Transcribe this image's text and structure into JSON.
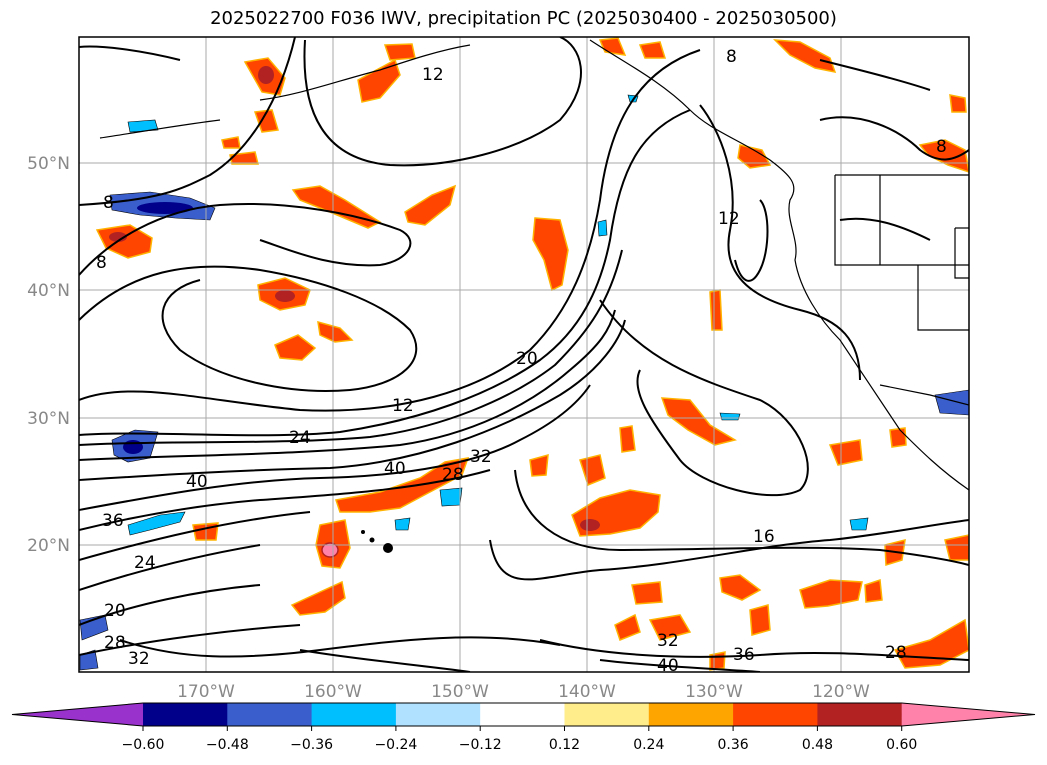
{
  "title": "2025022700 F036 IWV, precipitation PC (2025030400 - 2025030500)",
  "map": {
    "lat_ticks": [
      "50°N",
      "40°N",
      "30°N",
      "20°N"
    ],
    "lon_ticks": [
      "170°W",
      "160°W",
      "150°W",
      "140°W",
      "130°W",
      "120°W"
    ],
    "contour_labels": [
      "12",
      "8",
      "8",
      "20",
      "12",
      "24",
      "40",
      "40",
      "28",
      "32",
      "36",
      "24",
      "20",
      "28",
      "32",
      "16",
      "32",
      "40",
      "36",
      "28",
      "12",
      "8",
      "8"
    ]
  },
  "colorbar": {
    "ticks": [
      "−0.60",
      "−0.48",
      "−0.36",
      "−0.24",
      "−0.12",
      "0.12",
      "0.24",
      "0.36",
      "0.48",
      "0.60"
    ],
    "colors": [
      "#9932CC",
      "#00008B",
      "#3A5FCD",
      "#00BFFF",
      "#B0E2FF",
      "#FFFFFF",
      "#FFEC8B",
      "#FFA500",
      "#FF4500",
      "#B22222",
      "#FF82AB"
    ]
  }
}
